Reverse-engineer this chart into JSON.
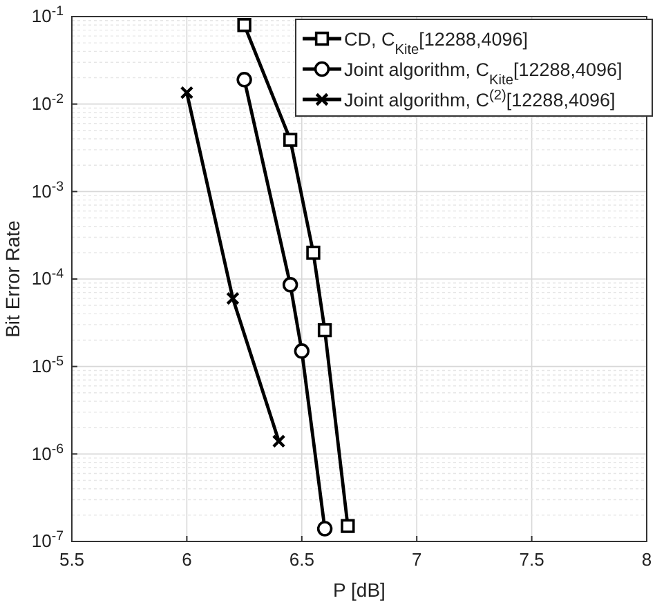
{
  "chart_data": {
    "type": "line",
    "xlabel": "P [dB]",
    "ylabel": "Bit Error Rate",
    "log": "y",
    "grid": true,
    "legend": "top right",
    "line_style": "solid",
    "xlim": [
      5.5,
      8
    ],
    "xticks": [
      5.5,
      6,
      6.5,
      7,
      7.5,
      8
    ],
    "ylim": [
      1e-07,
      0.1
    ],
    "yticks": [
      {
        "value": 1e-07,
        "label": "10$^{-7}$"
      },
      {
        "value": 1e-06,
        "label": "10$^{-6}$"
      },
      {
        "value": 1e-05,
        "label": "10$^{-5}$"
      },
      {
        "value": 0.0001,
        "label": "10$^{-4}$"
      },
      {
        "value": 0.001,
        "label": "10$^{-3}$"
      },
      {
        "value": 0.01,
        "label": "10$^{-2}$"
      },
      {
        "value": 0.1,
        "label": "10$^{-1}$"
      }
    ],
    "series": [
      {
        "name": "CD, C$_{Kite}$[12288,4096]",
        "color": "#000000",
        "marker": "square",
        "x": [
          6.25,
          6.45,
          6.55,
          6.6,
          6.7
        ],
        "values": [
          0.08,
          0.0039,
          0.0002,
          2.6e-05,
          1.5e-07
        ]
      },
      {
        "name": "Joint algorithm, C$_{Kite}$[12288,4096]",
        "color": "#000000",
        "marker": "circle",
        "x": [
          6.25,
          6.45,
          6.5,
          6.6
        ],
        "values": [
          0.019,
          8.6e-05,
          1.5e-05,
          1.4e-07
        ]
      },
      {
        "name": "Joint algorithm, C$^{(2)}$[12288,4096]",
        "color": "#000000",
        "marker": "cross",
        "x": [
          6,
          6.2,
          6.4
        ],
        "values": [
          0.0135,
          6e-05,
          1.4e-06
        ]
      }
    ]
  }
}
